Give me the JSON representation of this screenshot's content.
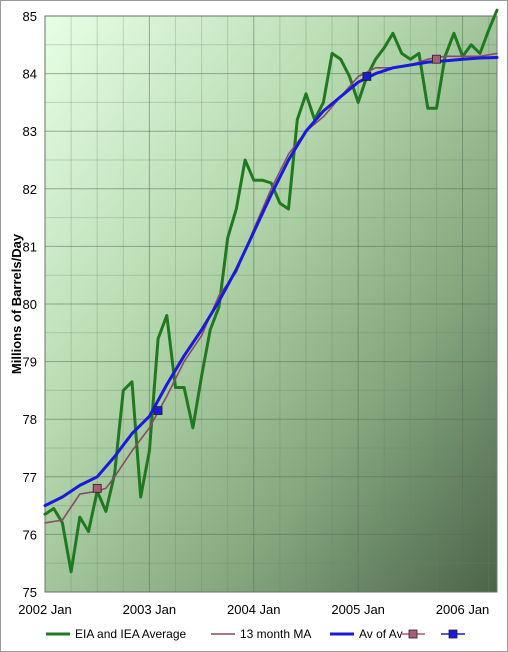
{
  "chart_data": {
    "type": "line",
    "title": "",
    "xlabel": "",
    "ylabel": "Millions of Barrels/Day",
    "ylim": [
      75,
      85
    ],
    "xlim": [
      2002.0,
      2006.33
    ],
    "x_ticks": [
      {
        "value": 2002.0,
        "label": "2002 Jan"
      },
      {
        "value": 2003.0,
        "label": "2003 Jan"
      },
      {
        "value": 2004.0,
        "label": "2004 Jan"
      },
      {
        "value": 2005.0,
        "label": "2005 Jan"
      },
      {
        "value": 2006.0,
        "label": "2006 Jan"
      }
    ],
    "y_ticks": [
      75,
      76,
      77,
      78,
      79,
      80,
      81,
      82,
      83,
      84,
      85
    ],
    "grid": true,
    "legend_position": "bottom",
    "series": [
      {
        "name": "EIA and IEA Average",
        "color": "#1f7a1f",
        "x": [
          2002.0,
          2002.083,
          2002.167,
          2002.25,
          2002.333,
          2002.417,
          2002.5,
          2002.583,
          2002.667,
          2002.75,
          2002.833,
          2002.917,
          2003.0,
          2003.083,
          2003.167,
          2003.25,
          2003.333,
          2003.417,
          2003.5,
          2003.583,
          2003.667,
          2003.75,
          2003.833,
          2003.917,
          2004.0,
          2004.083,
          2004.167,
          2004.25,
          2004.333,
          2004.417,
          2004.5,
          2004.583,
          2004.667,
          2004.75,
          2004.833,
          2004.917,
          2005.0,
          2005.083,
          2005.167,
          2005.25,
          2005.333,
          2005.417,
          2005.5,
          2005.583,
          2005.667,
          2005.75,
          2005.833,
          2005.917,
          2006.0,
          2006.083,
          2006.167,
          2006.25,
          2006.33
        ],
        "values": [
          76.35,
          76.45,
          76.2,
          75.35,
          76.3,
          76.05,
          76.75,
          76.4,
          77.05,
          78.5,
          78.65,
          76.65,
          77.45,
          79.4,
          79.8,
          78.55,
          78.55,
          77.85,
          78.75,
          79.55,
          79.95,
          81.15,
          81.65,
          82.5,
          82.15,
          82.15,
          82.1,
          81.75,
          81.65,
          83.2,
          83.65,
          83.2,
          83.5,
          84.35,
          84.25,
          83.95,
          83.5,
          83.95,
          84.25,
          84.45,
          84.7,
          84.35,
          84.25,
          84.35,
          83.4,
          83.4,
          84.3,
          84.7,
          84.3,
          84.5,
          84.35,
          84.75,
          85.1
        ]
      },
      {
        "name": "13 month MA",
        "color": "#8a4a6a",
        "x": [
          2002.0,
          2002.167,
          2002.333,
          2002.5,
          2002.583,
          2002.667,
          2002.833,
          2003.0,
          2003.167,
          2003.333,
          2003.5,
          2003.667,
          2003.833,
          2004.0,
          2004.167,
          2004.333,
          2004.5,
          2004.667,
          2004.833,
          2005.0,
          2005.167,
          2005.333,
          2005.5,
          2005.667,
          2005.833,
          2006.0,
          2006.167,
          2006.33
        ],
        "values": [
          76.2,
          76.25,
          76.7,
          76.75,
          76.8,
          77.0,
          77.45,
          77.85,
          78.4,
          79.0,
          79.45,
          80.15,
          80.55,
          81.3,
          82.0,
          82.6,
          83.0,
          83.25,
          83.6,
          83.95,
          84.1,
          84.1,
          84.15,
          84.25,
          84.3,
          84.3,
          84.3,
          84.35
        ]
      },
      {
        "name": "Av of Av",
        "color": "#1a1adc",
        "x": [
          2002.0,
          2002.167,
          2002.333,
          2002.5,
          2002.667,
          2002.833,
          2003.0,
          2003.167,
          2003.333,
          2003.5,
          2003.667,
          2003.833,
          2004.0,
          2004.167,
          2004.333,
          2004.5,
          2004.667,
          2004.833,
          2005.0,
          2005.167,
          2005.333,
          2005.5,
          2005.667,
          2005.833,
          2006.0,
          2006.167,
          2006.33
        ],
        "values": [
          76.5,
          76.65,
          76.85,
          77.0,
          77.35,
          77.75,
          78.05,
          78.6,
          79.1,
          79.55,
          80.05,
          80.6,
          81.25,
          81.9,
          82.5,
          83.0,
          83.35,
          83.6,
          83.85,
          84.0,
          84.1,
          84.15,
          84.2,
          84.22,
          84.25,
          84.27,
          84.28
        ]
      },
      {
        "name": "",
        "color": "#b05a7a",
        "marker": "square",
        "x": [
          2002.5,
          2005.75
        ],
        "values": [
          76.8,
          84.25
        ]
      },
      {
        "name": "",
        "color": "#1a1adc",
        "marker": "square",
        "x": [
          2003.083,
          2005.083
        ],
        "values": [
          78.15,
          83.95
        ]
      }
    ]
  }
}
